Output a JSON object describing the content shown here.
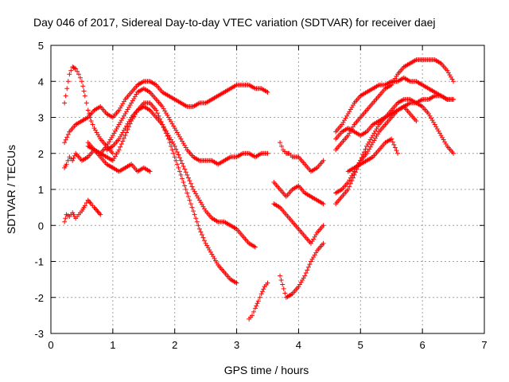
{
  "chart_data": {
    "type": "scatter",
    "title": "Day 046 of 2017, Sidereal Day-to-day VTEC variation (SDTVAR) for receiver daej",
    "xlabel": "GPS time / hours",
    "ylabel": "SDTVAR / TECUs",
    "xlim": [
      0,
      7
    ],
    "ylim": [
      -3,
      5
    ],
    "xticks": [
      0,
      1,
      2,
      3,
      4,
      5,
      6,
      7
    ],
    "yticks": [
      -3,
      -2,
      -1,
      0,
      1,
      2,
      3,
      4,
      5
    ],
    "grid": true,
    "marker": "plus",
    "color": "#ff0000",
    "series": [
      {
        "x": [
          0.22,
          0.25,
          0.3,
          0.35,
          0.4,
          0.45,
          0.5,
          0.55,
          0.6,
          0.65,
          0.7,
          0.75,
          0.8
        ],
        "y": [
          0.1,
          0.3,
          0.25,
          0.35,
          0.2,
          0.3,
          0.4,
          0.55,
          0.7,
          0.6,
          0.5,
          0.4,
          0.3
        ]
      },
      {
        "x": [
          0.22,
          0.25,
          0.3,
          0.35,
          0.4,
          0.5,
          0.6,
          0.7,
          0.8,
          0.9,
          1.0,
          1.1,
          1.2,
          1.3,
          1.4,
          1.5,
          1.6
        ],
        "y": [
          1.6,
          1.7,
          1.9,
          1.8,
          2.0,
          1.8,
          1.9,
          2.1,
          1.9,
          1.7,
          1.6,
          1.5,
          1.6,
          1.7,
          1.5,
          1.6,
          1.5
        ]
      },
      {
        "x": [
          0.22,
          0.26,
          0.3,
          0.35,
          0.4,
          0.45,
          0.5,
          0.55,
          0.6,
          0.65,
          0.7,
          0.8,
          0.9,
          1.0
        ],
        "y": [
          3.4,
          3.8,
          4.2,
          4.4,
          4.35,
          4.2,
          4.0,
          3.6,
          3.2,
          2.9,
          2.7,
          2.4,
          2.2,
          2.0
        ]
      },
      {
        "x": [
          0.22,
          0.3,
          0.4,
          0.5,
          0.6,
          0.7,
          0.8,
          0.9,
          1.0,
          1.1,
          1.2,
          1.3,
          1.4,
          1.5,
          1.6,
          1.7,
          1.8,
          1.9,
          2.0,
          2.1,
          2.2,
          2.3,
          2.4,
          2.5,
          2.6,
          2.7,
          2.8,
          2.9,
          3.0,
          3.1,
          3.2,
          3.3,
          3.4,
          3.5
        ],
        "y": [
          2.3,
          2.6,
          2.8,
          2.9,
          3.0,
          3.2,
          3.3,
          3.1,
          3.0,
          3.2,
          3.5,
          3.7,
          3.9,
          4.0,
          4.0,
          3.9,
          3.7,
          3.6,
          3.5,
          3.4,
          3.3,
          3.3,
          3.4,
          3.4,
          3.5,
          3.6,
          3.7,
          3.8,
          3.9,
          3.9,
          3.9,
          3.8,
          3.8,
          3.7
        ]
      },
      {
        "x": [
          0.6,
          0.7,
          0.8,
          0.9,
          1.0,
          1.1,
          1.2,
          1.3,
          1.4,
          1.5,
          1.6,
          1.7,
          1.8,
          1.9,
          2.0,
          2.1,
          2.2,
          2.3,
          2.4,
          2.5,
          2.6,
          2.7,
          2.8,
          2.9,
          3.0,
          3.1,
          3.2,
          3.3,
          3.4,
          3.5
        ],
        "y": [
          2.3,
          2.1,
          2.0,
          2.2,
          2.5,
          2.8,
          3.1,
          3.4,
          3.7,
          3.8,
          3.7,
          3.5,
          3.3,
          3.0,
          2.7,
          2.4,
          2.1,
          1.9,
          1.8,
          1.8,
          1.8,
          1.7,
          1.8,
          1.9,
          1.9,
          2.0,
          2.0,
          1.9,
          2.0,
          2.0
        ]
      },
      {
        "x": [
          0.6,
          0.7,
          0.8,
          0.9,
          1.0,
          1.1,
          1.2,
          1.3,
          1.4,
          1.5,
          1.6,
          1.7,
          1.8,
          1.9,
          2.0,
          2.1,
          2.2,
          2.3,
          2.4,
          2.5,
          2.6,
          2.7,
          2.8,
          2.9,
          3.0,
          3.1,
          3.2,
          3.3
        ],
        "y": [
          2.2,
          2.1,
          2.0,
          1.9,
          1.8,
          2.1,
          2.5,
          2.9,
          3.2,
          3.3,
          3.2,
          3.0,
          2.8,
          2.5,
          2.2,
          1.8,
          1.4,
          1.0,
          0.7,
          0.4,
          0.2,
          0.1,
          0.1,
          0.0,
          -0.1,
          -0.3,
          -0.5,
          -0.6
        ]
      },
      {
        "x": [
          0.9,
          1.0,
          1.1,
          1.2,
          1.3,
          1.4,
          1.5,
          1.6,
          1.7,
          1.8,
          1.9,
          2.0,
          2.1,
          2.2,
          2.3,
          2.4,
          2.5,
          2.6,
          2.7,
          2.8,
          2.9,
          3.0
        ],
        "y": [
          2.1,
          2.2,
          2.4,
          2.7,
          3.0,
          3.2,
          3.4,
          3.4,
          3.2,
          2.8,
          2.4,
          1.9,
          1.4,
          0.9,
          0.4,
          -0.1,
          -0.5,
          -0.8,
          -1.1,
          -1.3,
          -1.5,
          -1.6
        ]
      },
      {
        "x": [
          3.2,
          3.25,
          3.3,
          3.35,
          3.4,
          3.45,
          3.5
        ],
        "y": [
          -2.6,
          -2.5,
          -2.3,
          -2.1,
          -1.9,
          -1.7,
          -1.6
        ]
      },
      {
        "x": [
          3.7,
          3.75,
          3.8,
          3.85,
          3.9,
          4.0,
          4.1,
          4.2,
          4.3,
          4.4
        ],
        "y": [
          2.3,
          2.1,
          2.0,
          2.0,
          1.9,
          1.9,
          1.7,
          1.5,
          1.6,
          1.8
        ]
      },
      {
        "x": [
          3.6,
          3.7,
          3.8,
          3.9,
          4.0,
          4.1,
          4.2,
          4.3,
          4.4
        ],
        "y": [
          1.2,
          1.0,
          0.8,
          1.0,
          1.1,
          0.9,
          0.8,
          0.7,
          0.6
        ]
      },
      {
        "x": [
          3.6,
          3.7,
          3.8,
          3.9,
          4.0,
          4.1,
          4.2,
          4.3,
          4.4
        ],
        "y": [
          0.6,
          0.5,
          0.3,
          0.1,
          -0.1,
          -0.3,
          -0.5,
          -0.2,
          0.0
        ]
      },
      {
        "x": [
          3.7,
          3.8,
          3.9,
          4.0,
          4.1,
          4.2,
          4.3,
          4.4
        ],
        "y": [
          -1.4,
          -2.0,
          -1.9,
          -1.7,
          -1.4,
          -1.0,
          -0.7,
          -0.5
        ]
      },
      {
        "x": [
          4.6,
          4.7,
          4.8,
          4.9,
          5.0,
          5.1,
          5.2,
          5.3,
          5.4,
          5.5,
          5.6,
          5.7,
          5.8,
          5.9,
          6.0,
          6.1,
          6.2,
          6.3,
          6.4,
          6.5
        ],
        "y": [
          2.6,
          2.8,
          3.1,
          3.4,
          3.6,
          3.7,
          3.8,
          3.9,
          3.9,
          4.0,
          4.0,
          4.1,
          4.0,
          4.0,
          3.9,
          3.8,
          3.7,
          3.6,
          3.5,
          3.5
        ]
      },
      {
        "x": [
          4.6,
          4.7,
          4.8,
          4.9,
          5.0,
          5.1,
          5.2,
          5.3,
          5.4,
          5.5,
          5.6,
          5.7,
          5.8,
          5.9,
          6.0,
          6.1,
          6.2,
          6.3,
          6.4,
          6.5
        ],
        "y": [
          2.1,
          2.3,
          2.5,
          2.8,
          3.0,
          3.2,
          3.4,
          3.6,
          3.8,
          3.9,
          4.2,
          4.4,
          4.5,
          4.6,
          4.6,
          4.6,
          4.6,
          4.5,
          4.3,
          4.0
        ]
      },
      {
        "x": [
          4.6,
          4.7,
          4.8,
          4.9,
          5.0,
          5.1,
          5.2,
          5.3,
          5.4,
          5.5,
          5.6,
          5.7,
          5.8,
          5.9,
          6.0,
          6.1,
          6.2,
          6.3,
          6.4,
          6.5
        ],
        "y": [
          2.4,
          2.6,
          2.7,
          2.6,
          2.5,
          2.6,
          2.8,
          2.9,
          3.0,
          3.2,
          3.4,
          3.5,
          3.5,
          3.4,
          3.3,
          3.1,
          2.8,
          2.5,
          2.2,
          2.0
        ]
      },
      {
        "x": [
          4.6,
          4.7,
          4.8,
          4.9,
          5.0,
          5.1,
          5.2,
          5.3,
          5.4,
          5.5,
          5.6,
          5.7,
          5.8,
          5.9,
          6.0,
          6.1,
          6.2,
          6.3,
          6.4,
          6.5
        ],
        "y": [
          0.6,
          0.8,
          1.0,
          1.4,
          1.8,
          2.2,
          2.5,
          2.8,
          3.0,
          3.1,
          3.2,
          3.3,
          3.4,
          3.4,
          3.5,
          3.5,
          3.6,
          3.6,
          3.5,
          3.5
        ]
      },
      {
        "x": [
          4.6,
          4.7,
          4.8,
          4.9,
          5.0,
          5.1,
          5.2,
          5.3,
          5.4,
          5.5,
          5.6,
          5.7,
          5.8,
          5.9
        ],
        "y": [
          0.9,
          1.0,
          1.2,
          1.5,
          1.8,
          2.0,
          2.3,
          2.6,
          2.8,
          3.0,
          3.2,
          3.3,
          3.1,
          2.9
        ]
      },
      {
        "x": [
          4.8,
          4.9,
          5.0,
          5.1,
          5.2,
          5.3,
          5.4,
          5.5,
          5.6
        ],
        "y": [
          1.5,
          1.6,
          1.7,
          1.8,
          1.9,
          2.1,
          2.3,
          2.4,
          2.0
        ]
      }
    ]
  }
}
